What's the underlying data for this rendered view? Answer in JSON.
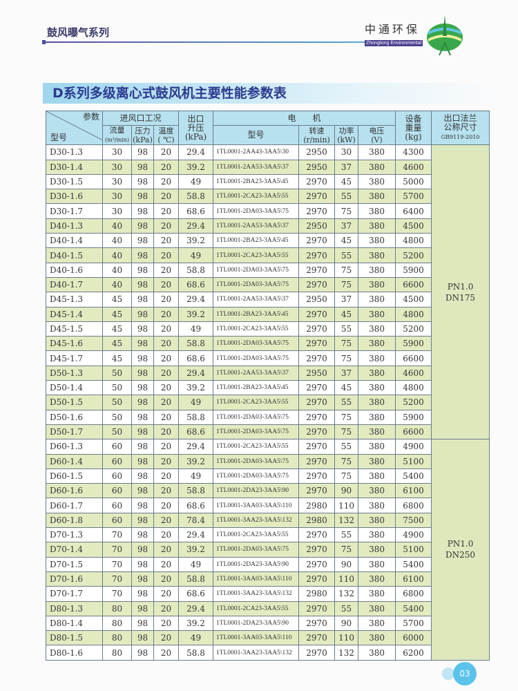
{
  "header": {
    "series": "鼓风曝气系列",
    "brand_cn": "中通环保",
    "brand_en": "Zhongtong Environmental"
  },
  "title": "D系列多级离心式鼓风机主要性能参数表",
  "table": {
    "headers": {
      "param": "参数",
      "model": "型号",
      "inlet": "进风口工况",
      "flow": "流量",
      "flow_unit": "(m³/min)",
      "pressure": "压力",
      "pressure_unit": "(kPa)",
      "temp": "温度",
      "temp_unit": "( ℃)",
      "outlet1": "出口",
      "outlet2": "升压",
      "outlet_unit": "(kPa)",
      "motor": "电　　机",
      "motor_model": "型号",
      "speed": "转速",
      "speed_unit": "(r/min)",
      "power": "功率",
      "power_unit": "(kW)",
      "voltage": "电压",
      "voltage_unit": "(V)",
      "weight1": "设备",
      "weight2": "重量",
      "weight_unit": "(kg)",
      "flange1": "出口法兰",
      "flange2": "公称尺寸",
      "flange_std": "GB9119-2010"
    },
    "flange_groups": [
      {
        "rows": 20,
        "pn": "PN1.0",
        "dn": "DN175"
      },
      {
        "rows": 15,
        "pn": "PN1.0",
        "dn": "DN250"
      }
    ],
    "rows": [
      [
        "D30-1.3",
        "30",
        "98",
        "20",
        "29.4",
        "1TL0001-2AA43-3AA5\\30",
        "2950",
        "30",
        "380",
        "4300"
      ],
      [
        "D30-1.4",
        "30",
        "98",
        "20",
        "39.2",
        "1TL0001-2AA53-3AA5\\37",
        "2950",
        "37",
        "380",
        "4600"
      ],
      [
        "D30-1.5",
        "30",
        "98",
        "20",
        "49",
        "1TL0001-2BA23-3AA5\\45",
        "2970",
        "45",
        "380",
        "5000"
      ],
      [
        "D30-1.6",
        "30",
        "98",
        "20",
        "58.8",
        "1TL0001-2CA23-3AA5\\55",
        "2970",
        "55",
        "380",
        "5700"
      ],
      [
        "D30-1.7",
        "30",
        "98",
        "20",
        "68.6",
        "1TL0001-2DA03-3AA5\\75",
        "2970",
        "75",
        "380",
        "6400"
      ],
      [
        "D40-1.3",
        "40",
        "98",
        "20",
        "29.4",
        "1TL0001-2AA53-3AA5\\37",
        "2950",
        "37",
        "380",
        "4500"
      ],
      [
        "D40-1.4",
        "40",
        "98",
        "20",
        "39.2",
        "1TL0001-2BA23-3AA5\\45",
        "2970",
        "45",
        "380",
        "4800"
      ],
      [
        "D40-1.5",
        "40",
        "98",
        "20",
        "49",
        "1TL0001-2CA23-3AA5\\55",
        "2970",
        "55",
        "380",
        "5200"
      ],
      [
        "D40-1.6",
        "40",
        "98",
        "20",
        "58.8",
        "1TL0001-2DA03-3AA5\\75",
        "2970",
        "75",
        "380",
        "5900"
      ],
      [
        "D40-1.7",
        "40",
        "98",
        "20",
        "68.6",
        "1TL0001-2DA03-3AA5\\75",
        "2970",
        "75",
        "380",
        "6600"
      ],
      [
        "D45-1.3",
        "45",
        "98",
        "20",
        "29.4",
        "1TL0001-2AA53-3AA5\\37",
        "2950",
        "37",
        "380",
        "4500"
      ],
      [
        "D45-1.4",
        "45",
        "98",
        "20",
        "39.2",
        "1TL0001-2BA23-3AA5\\45",
        "2970",
        "45",
        "380",
        "4800"
      ],
      [
        "D45-1.5",
        "45",
        "98",
        "20",
        "49",
        "1TL0001-2CA23-3AA5\\55",
        "2970",
        "55",
        "380",
        "5200"
      ],
      [
        "D45-1.6",
        "45",
        "98",
        "20",
        "58.8",
        "1TL0001-2DA03-3AA5\\75",
        "2970",
        "75",
        "380",
        "5900"
      ],
      [
        "D45-1.7",
        "45",
        "98",
        "20",
        "68.6",
        "1TL0001-2DA03-3AA5\\75",
        "2970",
        "75",
        "380",
        "6600"
      ],
      [
        "D50-1.3",
        "50",
        "98",
        "20",
        "29.4",
        "1TL0001-2AA53-3AA5\\37",
        "2950",
        "37",
        "380",
        "4600"
      ],
      [
        "D50-1.4",
        "50",
        "98",
        "20",
        "39.2",
        "1TL0001-2BA23-3AA5\\45",
        "2970",
        "45",
        "380",
        "4800"
      ],
      [
        "D50-1.5",
        "50",
        "98",
        "20",
        "49",
        "1TL0001-2CA23-3AA5\\55",
        "2970",
        "55",
        "380",
        "5200"
      ],
      [
        "D50-1.6",
        "50",
        "98",
        "20",
        "58.8",
        "1TL0001-2DA03-3AA5\\75",
        "2970",
        "75",
        "380",
        "5900"
      ],
      [
        "D50-1.7",
        "50",
        "98",
        "20",
        "68.6",
        "1TL0001-2DA03-3AA5\\75",
        "2970",
        "75",
        "380",
        "6600"
      ],
      [
        "D60-1.3",
        "60",
        "98",
        "20",
        "29.4",
        "1TL0001-2CA23-3AA5\\55",
        "2970",
        "55",
        "380",
        "4900"
      ],
      [
        "D60-1.4",
        "60",
        "98",
        "20",
        "39.2",
        "1TL0001-2DA03-3AA5\\75",
        "2970",
        "75",
        "380",
        "5100"
      ],
      [
        "D60-1.5",
        "60",
        "98",
        "20",
        "49",
        "1TL0001-2DA03-3AA5\\75",
        "2970",
        "75",
        "380",
        "5400"
      ],
      [
        "D60-1.6",
        "60",
        "98",
        "20",
        "58.8",
        "1TL0001-2DA23-3AA5\\90",
        "2970",
        "90",
        "380",
        "6100"
      ],
      [
        "D60-1.7",
        "60",
        "98",
        "20",
        "68.6",
        "1TL0001-3AA03-3AA5\\110",
        "2980",
        "110",
        "380",
        "6800"
      ],
      [
        "D60-1.8",
        "60",
        "98",
        "20",
        "78.4",
        "1TL0001-3AA23-3AA5\\132",
        "2980",
        "132",
        "380",
        "7500"
      ],
      [
        "D70-1.3",
        "70",
        "98",
        "20",
        "29.4",
        "1TL0001-2CA23-3AA5\\55",
        "2970",
        "55",
        "380",
        "4900"
      ],
      [
        "D70-1.4",
        "70",
        "98",
        "20",
        "39.2",
        "1TL0001-2DA03-3AA5\\75",
        "2970",
        "75",
        "380",
        "5100"
      ],
      [
        "D70-1.5",
        "70",
        "98",
        "20",
        "49",
        "1TL0001-2DA23-3AA5\\90",
        "2970",
        "90",
        "380",
        "5400"
      ],
      [
        "D70-1.6",
        "70",
        "98",
        "20",
        "58.8",
        "1TL0001-3AA03-3AA5\\110",
        "2970",
        "110",
        "380",
        "6100"
      ],
      [
        "D70-1.7",
        "70",
        "98",
        "20",
        "68.6",
        "1TL0001-3AA23-3AA5\\132",
        "2980",
        "132",
        "380",
        "6800"
      ],
      [
        "D80-1.3",
        "80",
        "98",
        "20",
        "29.4",
        "1TL0001-2CA23-3AA5\\55",
        "2970",
        "55",
        "380",
        "5400"
      ],
      [
        "D80-1.4",
        "80",
        "98",
        "20",
        "39.2",
        "1TL0001-2DA23-3AA5\\90",
        "2970",
        "90",
        "380",
        "5700"
      ],
      [
        "D80-1.5",
        "80",
        "98",
        "20",
        "49",
        "1TL0001-3AA03-3AA5\\110",
        "2970",
        "110",
        "380",
        "6000"
      ],
      [
        "D80-1.6",
        "80",
        "98",
        "20",
        "58.8",
        "1TL0001-3AA23-3AA5\\132",
        "2970",
        "132",
        "380",
        "6200"
      ]
    ]
  },
  "page_number": "03",
  "colors": {
    "header_bg": "#b7e1ef",
    "row_green": "#e2ebc0",
    "title": "#2b3a8f",
    "page_badge": "#5bc3ea"
  }
}
